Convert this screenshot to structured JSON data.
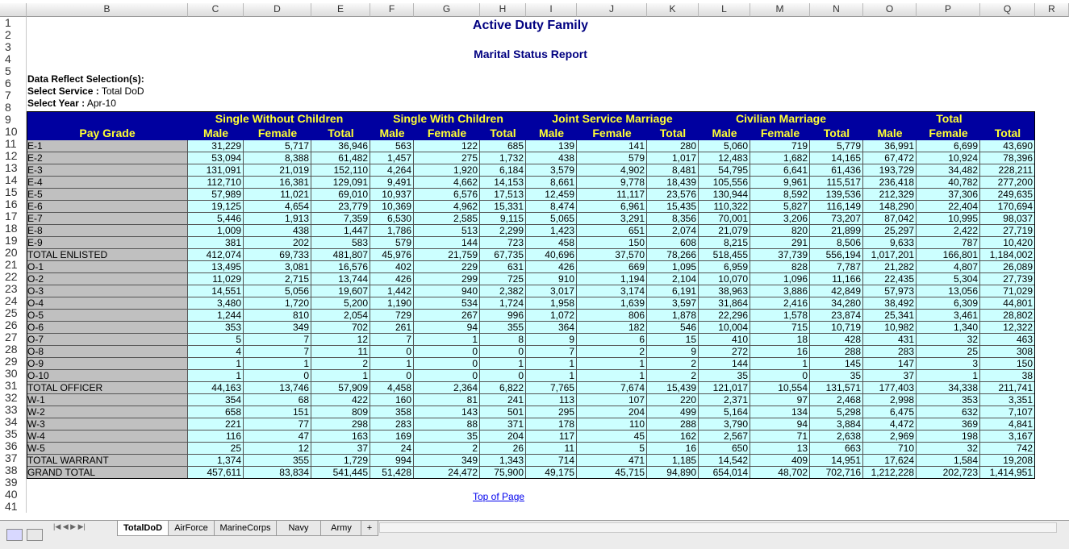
{
  "columns": [
    "",
    "B",
    "C",
    "D",
    "E",
    "F",
    "G",
    "H",
    "I",
    "J",
    "K",
    "L",
    "M",
    "N",
    "O",
    "P",
    "Q",
    "R"
  ],
  "title": "Active Duty Family",
  "subtitle": "Marital Status Report",
  "selections": {
    "heading": "Data Reflect Selection(s):",
    "service_label": "Select Service :",
    "service_value": "Total DoD",
    "year_label": "Select Year :",
    "year_value": "Apr-10"
  },
  "group_headers": [
    "Single Without Children",
    "Single With Children",
    "Joint Service Marriage",
    "Civilian Marriage",
    "Total"
  ],
  "pay_grade_label": "Pay Grade",
  "sub_headers": [
    "Male",
    "Female",
    "Total",
    "Male",
    "Female",
    "Total",
    "Male",
    "Female",
    "Total",
    "Male",
    "Female",
    "Total",
    "Male",
    "Female",
    "Total"
  ],
  "rows": [
    [
      "E-1",
      "31,229",
      "5,717",
      "36,946",
      "563",
      "122",
      "685",
      "139",
      "141",
      "280",
      "5,060",
      "719",
      "5,779",
      "36,991",
      "6,699",
      "43,690"
    ],
    [
      "E-2",
      "53,094",
      "8,388",
      "61,482",
      "1,457",
      "275",
      "1,732",
      "438",
      "579",
      "1,017",
      "12,483",
      "1,682",
      "14,165",
      "67,472",
      "10,924",
      "78,396"
    ],
    [
      "E-3",
      "131,091",
      "21,019",
      "152,110",
      "4,264",
      "1,920",
      "6,184",
      "3,579",
      "4,902",
      "8,481",
      "54,795",
      "6,641",
      "61,436",
      "193,729",
      "34,482",
      "228,211"
    ],
    [
      "E-4",
      "112,710",
      "16,381",
      "129,091",
      "9,491",
      "4,662",
      "14,153",
      "8,661",
      "9,778",
      "18,439",
      "105,556",
      "9,961",
      "115,517",
      "236,418",
      "40,782",
      "277,200"
    ],
    [
      "E-5",
      "57,989",
      "11,021",
      "69,010",
      "10,937",
      "6,576",
      "17,513",
      "12,459",
      "11,117",
      "23,576",
      "130,944",
      "8,592",
      "139,536",
      "212,329",
      "37,306",
      "249,635"
    ],
    [
      "E-6",
      "19,125",
      "4,654",
      "23,779",
      "10,369",
      "4,962",
      "15,331",
      "8,474",
      "6,961",
      "15,435",
      "110,322",
      "5,827",
      "116,149",
      "148,290",
      "22,404",
      "170,694"
    ],
    [
      "E-7",
      "5,446",
      "1,913",
      "7,359",
      "6,530",
      "2,585",
      "9,115",
      "5,065",
      "3,291",
      "8,356",
      "70,001",
      "3,206",
      "73,207",
      "87,042",
      "10,995",
      "98,037"
    ],
    [
      "E-8",
      "1,009",
      "438",
      "1,447",
      "1,786",
      "513",
      "2,299",
      "1,423",
      "651",
      "2,074",
      "21,079",
      "820",
      "21,899",
      "25,297",
      "2,422",
      "27,719"
    ],
    [
      "E-9",
      "381",
      "202",
      "583",
      "579",
      "144",
      "723",
      "458",
      "150",
      "608",
      "8,215",
      "291",
      "8,506",
      "9,633",
      "787",
      "10,420"
    ],
    [
      "TOTAL ENLISTED",
      "412,074",
      "69,733",
      "481,807",
      "45,976",
      "21,759",
      "67,735",
      "40,696",
      "37,570",
      "78,266",
      "518,455",
      "37,739",
      "556,194",
      "1,017,201",
      "166,801",
      "1,184,002"
    ],
    [
      "O-1",
      "13,495",
      "3,081",
      "16,576",
      "402",
      "229",
      "631",
      "426",
      "669",
      "1,095",
      "6,959",
      "828",
      "7,787",
      "21,282",
      "4,807",
      "26,089"
    ],
    [
      "O-2",
      "11,029",
      "2,715",
      "13,744",
      "426",
      "299",
      "725",
      "910",
      "1,194",
      "2,104",
      "10,070",
      "1,096",
      "11,166",
      "22,435",
      "5,304",
      "27,739"
    ],
    [
      "O-3",
      "14,551",
      "5,056",
      "19,607",
      "1,442",
      "940",
      "2,382",
      "3,017",
      "3,174",
      "6,191",
      "38,963",
      "3,886",
      "42,849",
      "57,973",
      "13,056",
      "71,029"
    ],
    [
      "O-4",
      "3,480",
      "1,720",
      "5,200",
      "1,190",
      "534",
      "1,724",
      "1,958",
      "1,639",
      "3,597",
      "31,864",
      "2,416",
      "34,280",
      "38,492",
      "6,309",
      "44,801"
    ],
    [
      "O-5",
      "1,244",
      "810",
      "2,054",
      "729",
      "267",
      "996",
      "1,072",
      "806",
      "1,878",
      "22,296",
      "1,578",
      "23,874",
      "25,341",
      "3,461",
      "28,802"
    ],
    [
      "O-6",
      "353",
      "349",
      "702",
      "261",
      "94",
      "355",
      "364",
      "182",
      "546",
      "10,004",
      "715",
      "10,719",
      "10,982",
      "1,340",
      "12,322"
    ],
    [
      "O-7",
      "5",
      "7",
      "12",
      "7",
      "1",
      "8",
      "9",
      "6",
      "15",
      "410",
      "18",
      "428",
      "431",
      "32",
      "463"
    ],
    [
      "O-8",
      "4",
      "7",
      "11",
      "0",
      "0",
      "0",
      "7",
      "2",
      "9",
      "272",
      "16",
      "288",
      "283",
      "25",
      "308"
    ],
    [
      "O-9",
      "1",
      "1",
      "2",
      "1",
      "0",
      "1",
      "1",
      "1",
      "2",
      "144",
      "1",
      "145",
      "147",
      "3",
      "150"
    ],
    [
      "O-10",
      "1",
      "0",
      "1",
      "0",
      "0",
      "0",
      "1",
      "1",
      "2",
      "35",
      "0",
      "35",
      "37",
      "1",
      "38"
    ],
    [
      "TOTAL OFFICER",
      "44,163",
      "13,746",
      "57,909",
      "4,458",
      "2,364",
      "6,822",
      "7,765",
      "7,674",
      "15,439",
      "121,017",
      "10,554",
      "131,571",
      "177,403",
      "34,338",
      "211,741"
    ],
    [
      "W-1",
      "354",
      "68",
      "422",
      "160",
      "81",
      "241",
      "113",
      "107",
      "220",
      "2,371",
      "97",
      "2,468",
      "2,998",
      "353",
      "3,351"
    ],
    [
      "W-2",
      "658",
      "151",
      "809",
      "358",
      "143",
      "501",
      "295",
      "204",
      "499",
      "5,164",
      "134",
      "5,298",
      "6,475",
      "632",
      "7,107"
    ],
    [
      "W-3",
      "221",
      "77",
      "298",
      "283",
      "88",
      "371",
      "178",
      "110",
      "288",
      "3,790",
      "94",
      "3,884",
      "4,472",
      "369",
      "4,841"
    ],
    [
      "W-4",
      "116",
      "47",
      "163",
      "169",
      "35",
      "204",
      "117",
      "45",
      "162",
      "2,567",
      "71",
      "2,638",
      "2,969",
      "198",
      "3,167"
    ],
    [
      "W-5",
      "25",
      "12",
      "37",
      "24",
      "2",
      "26",
      "11",
      "5",
      "16",
      "650",
      "13",
      "663",
      "710",
      "32",
      "742"
    ],
    [
      "TOTAL WARRANT",
      "1,374",
      "355",
      "1,729",
      "994",
      "349",
      "1,343",
      "714",
      "471",
      "1,185",
      "14,542",
      "409",
      "14,951",
      "17,624",
      "1,584",
      "19,208"
    ],
    [
      "GRAND TOTAL",
      "457,611",
      "83,834",
      "541,445",
      "51,428",
      "24,472",
      "75,900",
      "49,175",
      "45,715",
      "94,890",
      "654,014",
      "48,702",
      "702,716",
      "1,212,228",
      "202,723",
      "1,414,951"
    ]
  ],
  "link_text": "Top of Page",
  "sheet_tabs": [
    "TotalDoD",
    "AirForce",
    "MarineCorps",
    "Navy",
    "Army",
    "+"
  ],
  "nav_arrows": "|◀ ◀ ▶ ▶|",
  "colors": {
    "header_bg": "#0000a0",
    "header_text": "#ffff33",
    "data_bg": "#ccffff",
    "label_bg": "#c0c0c0",
    "title": "#000080"
  }
}
